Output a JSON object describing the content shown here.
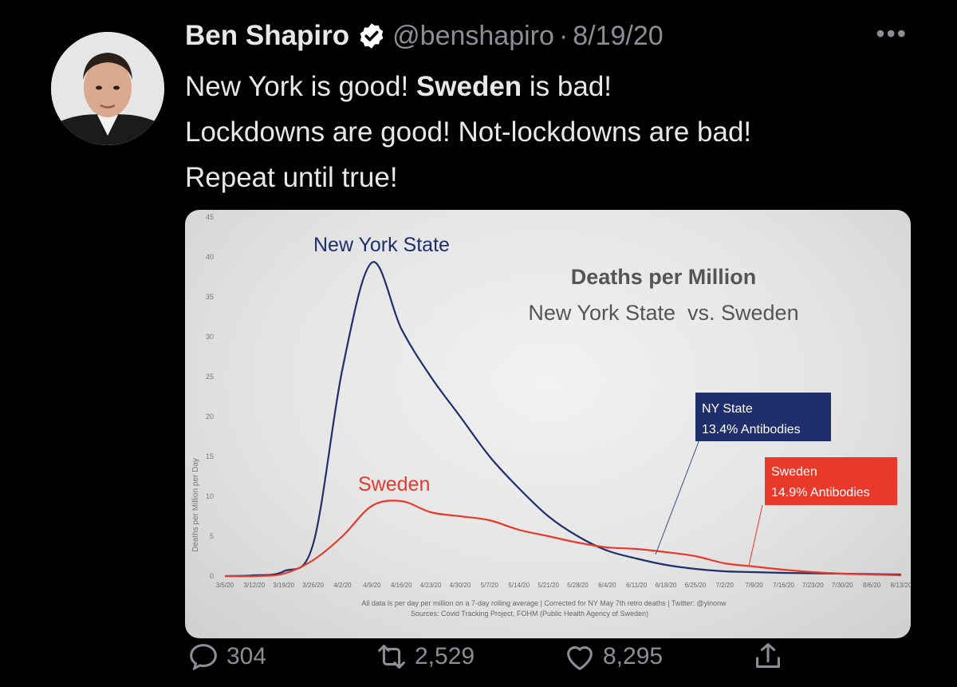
{
  "author": {
    "name": "Ben Shapiro",
    "handle": "@benshapiro",
    "separator": "·",
    "date": "8/19/20"
  },
  "more_label": "•••",
  "tweet": {
    "line1_a": "New York is good! ",
    "line1_b": "Sweden",
    "line1_c": " is bad!",
    "line2": "Lockdowns are good! Not-lockdowns are bad!",
    "line3": "Repeat until true!"
  },
  "actions": {
    "replies": "304",
    "retweets": "2,529",
    "likes": "8,295"
  },
  "colors": {
    "ny": "#1f2f6b",
    "sweden": "#e8392a",
    "verified": "#ffffff",
    "muted": "#8b8f94"
  },
  "chart_data": {
    "type": "line",
    "title": "Deaths per Million",
    "subtitle": "New York State  vs. Sweden",
    "ylabel": "Deaths per Million per Day",
    "ylim": [
      0,
      45
    ],
    "yticks": [
      0,
      5,
      10,
      15,
      20,
      25,
      30,
      35,
      40,
      45
    ],
    "x": [
      "3/5/20",
      "3/12/20",
      "3/19/20",
      "3/26/20",
      "4/2/20",
      "4/9/20",
      "4/16/20",
      "4/23/20",
      "4/30/20",
      "5/7/20",
      "5/14/20",
      "5/21/20",
      "5/28/20",
      "6/4/20",
      "6/11/20",
      "6/18/20",
      "6/25/20",
      "7/2/20",
      "7/9/20",
      "7/16/20",
      "7/23/20",
      "7/30/20",
      "8/6/20",
      "8/13/20"
    ],
    "series": [
      {
        "name": "New York State",
        "values": [
          0,
          0.1,
          0.6,
          4,
          26,
          39.3,
          31,
          25,
          20,
          15,
          11,
          7.5,
          5,
          3.2,
          2.2,
          1.4,
          0.9,
          0.6,
          0.5,
          0.4,
          0.35,
          0.3,
          0.25,
          0.2
        ]
      },
      {
        "name": "Sweden",
        "values": [
          0,
          0,
          0.3,
          2,
          5,
          8.8,
          9.4,
          8,
          7.5,
          7,
          5.8,
          5,
          4.2,
          3.6,
          3.4,
          3,
          2.5,
          1.6,
          1.2,
          0.8,
          0.5,
          0.3,
          0.2,
          0.1
        ]
      }
    ],
    "annotations": [
      {
        "text_lines": [
          "NY State",
          "13.4% Antibodies"
        ]
      },
      {
        "text_lines": [
          "Sweden",
          "14.9% Antibodies"
        ]
      }
    ],
    "footnote1": "All data is per day per million on a 7-day rolling average | Corrected for NY May 7th retro deaths | Twitter: @yinonw",
    "footnote2": "Sources: Covid Tracking Project, FOHM (Public Health Agency of Sweden)",
    "grid": false
  }
}
